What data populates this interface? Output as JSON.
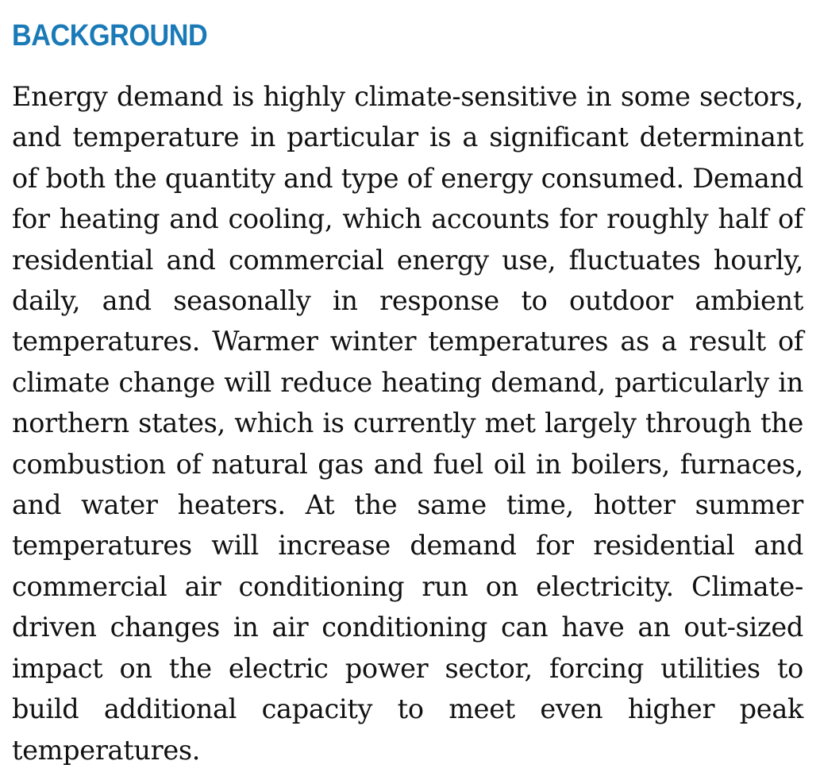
{
  "section": {
    "heading": "BACKGROUND",
    "paragraph": "Energy demand is highly climate-sensitive in some sectors, and temperature in particular is a significant determinant of both the quantity and type of energy consumed. Demand for heating and cooling, which accounts for roughly half of residential and commercial energy use, fluctuates hourly, daily, and seasonally in response to outdoor ambient temperatures. Warmer winter temperatures as a result of climate change will reduce heating demand, particularly in northern states, which is currently met largely through the combustion of natural gas and fuel oil in boilers, furnaces, and water heaters. At the same time, hotter summer temperatures will increase demand for residential and commercial air conditioning run on electricity. Climate-driven changes in air conditioning can have an out-sized impact on the electric power sector, forcing utilities to build additional capacity to meet even higher peak temperatures."
  },
  "colors": {
    "heading": "#1a7ab8",
    "text": "#111111",
    "background": "#ffffff"
  }
}
